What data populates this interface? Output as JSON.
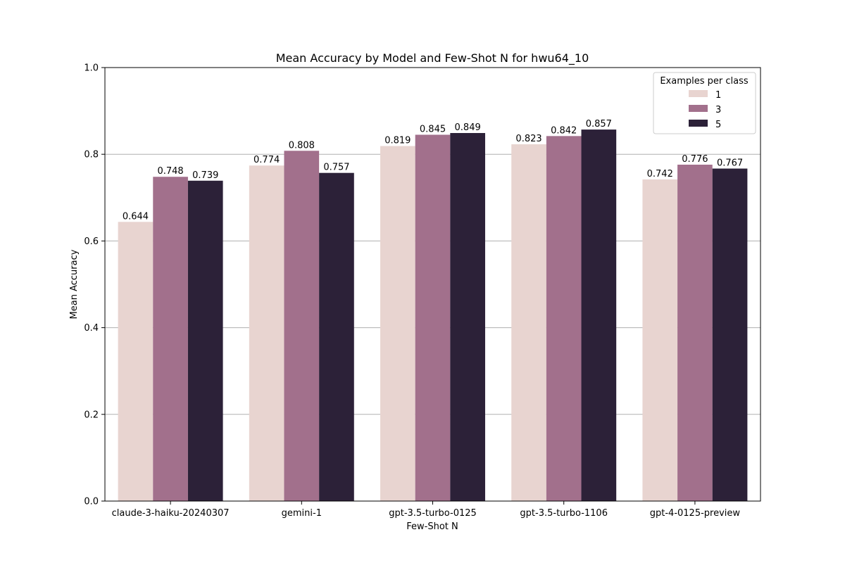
{
  "chart_data": {
    "type": "bar",
    "title": "Mean Accuracy by Model and Few-Shot N for hwu64_10",
    "xlabel": "Few-Shot N",
    "ylabel": "Mean Accuracy",
    "ylim": [
      0,
      1.0
    ],
    "yticks": [
      "0.0",
      "0.2",
      "0.4",
      "0.6",
      "0.8",
      "1.0"
    ],
    "categories": [
      "claude-3-haiku-20240307",
      "gemini-1",
      "gpt-3.5-turbo-0125",
      "gpt-3.5-turbo-1106",
      "gpt-4-0125-preview"
    ],
    "series": [
      {
        "name": "1",
        "color": "#e8d4d0",
        "values": [
          0.644,
          0.774,
          0.819,
          0.823,
          0.742
        ],
        "labels": [
          "0.644",
          "0.774",
          "0.819",
          "0.823",
          "0.742"
        ]
      },
      {
        "name": "3",
        "color": "#a2708c",
        "values": [
          0.748,
          0.808,
          0.845,
          0.842,
          0.776
        ],
        "labels": [
          "0.748",
          "0.808",
          "0.845",
          "0.842",
          "0.776"
        ]
      },
      {
        "name": "5",
        "color": "#2c2138",
        "values": [
          0.739,
          0.757,
          0.849,
          0.857,
          0.767
        ],
        "labels": [
          "0.739",
          "0.757",
          "0.849",
          "0.857",
          "0.767"
        ]
      }
    ],
    "legend": {
      "title": "Examples per class",
      "placement": "top-right"
    },
    "grid": "horizontal"
  }
}
